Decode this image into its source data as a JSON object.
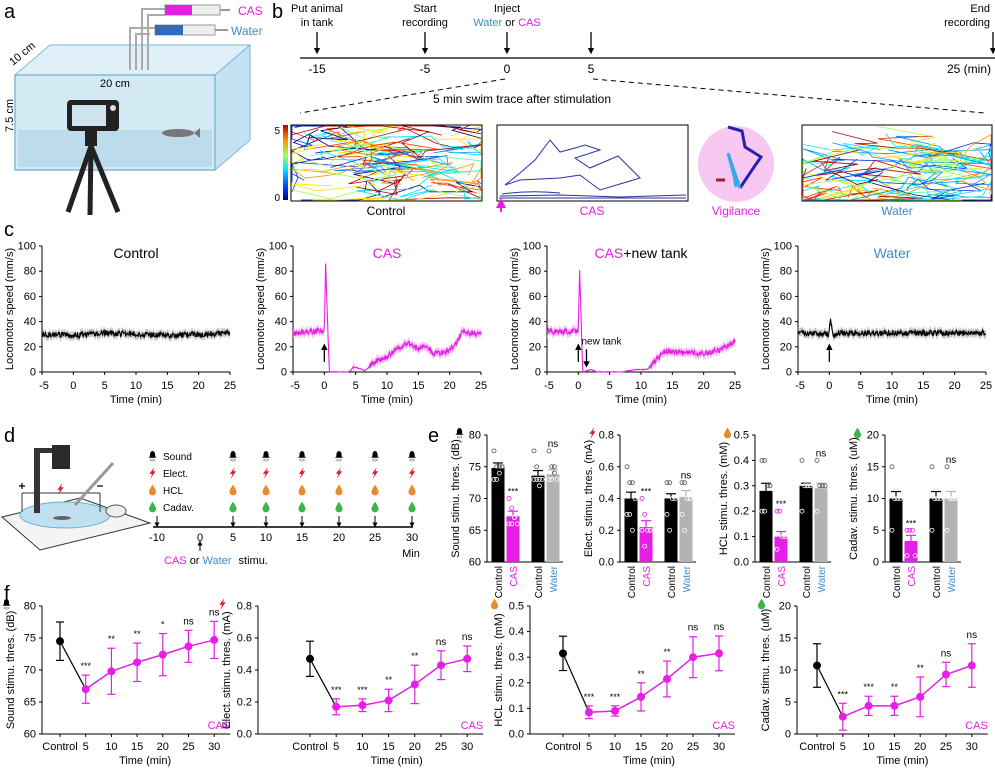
{
  "colors": {
    "cas": "#e61ee6",
    "water": "#3b8ec9",
    "control": "#000000",
    "water_bar": "#b3b3b3",
    "elect": "#d8202a",
    "hcl": "#e88a2e",
    "cadav": "#3cb54a",
    "vigilance_bg": "#f7c9f2"
  },
  "panel_labels": {
    "a": "a",
    "b": "b",
    "c": "c",
    "d": "d",
    "e": "e",
    "f": "f"
  },
  "panel_a": {
    "syringe_cas": "CAS",
    "syringe_water": "Water",
    "depth": "10 cm",
    "width": "20 cm",
    "height": "7.5 cm"
  },
  "panel_b": {
    "events": [
      {
        "t": -15,
        "label1": "Put animal",
        "label2": "in tank",
        "tick": "-15"
      },
      {
        "t": -5,
        "label1": "Start",
        "label2": "recording",
        "tick": "-5"
      },
      {
        "t": 0,
        "label1": "Inject",
        "label2_a": "Water",
        "label2_b": "or",
        "label2_c": "CAS",
        "tick": "0"
      },
      {
        "t": 5,
        "tick": "5"
      },
      {
        "t": 25,
        "label1": "End",
        "label2": "recording",
        "tick": "25 (min)"
      }
    ],
    "trace_caption": "5 min swim trace after stimulation",
    "colorbar_max": "5",
    "colorbar_min": "0",
    "trace_labels": {
      "control": "Control",
      "cas": "CAS",
      "vigilance": "Vigilance",
      "water": "Water"
    }
  },
  "panel_d": {
    "rows": [
      "Sound",
      "Elect.",
      "HCL",
      "Cadav."
    ],
    "tick_labels": [
      "-10",
      "0",
      "5",
      "10",
      "15",
      "20",
      "25",
      "30"
    ],
    "unit": "Min",
    "caption": {
      "cas": "CAS",
      "or": "or",
      "water": "Water",
      "stimu": "stimu."
    }
  },
  "chart_data": [
    {
      "type": "line",
      "panel": "c",
      "title_parts": [
        {
          "text": "Control",
          "color": "#000000"
        }
      ],
      "xlabel": "Time (min)",
      "ylabel": "Locomotor speed (mm/s)",
      "xlim": [
        -5,
        25
      ],
      "ylim": [
        0,
        100
      ],
      "xticks": [
        "-5",
        "0",
        "5",
        "10",
        "15",
        "20",
        "25"
      ],
      "yticks": [
        "0",
        "20",
        "40",
        "60",
        "80",
        "100"
      ],
      "series": [
        {
          "color": "#000000",
          "band_color": "#b0b0b0",
          "x": [
            -5,
            0,
            5,
            10,
            15,
            20,
            25
          ],
          "y": [
            30,
            29,
            31,
            30,
            29,
            30,
            31
          ]
        }
      ]
    },
    {
      "type": "line",
      "panel": "c",
      "title_parts": [
        {
          "text": "CAS",
          "color": "#e61ee6"
        }
      ],
      "xlabel": "Time (min)",
      "ylabel": "Locomotor speed (mm/s)",
      "xlim": [
        -5,
        25
      ],
      "ylim": [
        0,
        100
      ],
      "xticks": [
        "-5",
        "0",
        "5",
        "10",
        "15",
        "20",
        "25"
      ],
      "yticks": [
        "0",
        "20",
        "40",
        "60",
        "80",
        "100"
      ],
      "stimulus_t": 0,
      "series": [
        {
          "color": "#e61ee6",
          "band_color": "#f5a8f5",
          "x": [
            -5,
            0,
            0.2,
            0.8,
            4,
            4.6,
            5.5,
            6.5,
            8,
            10,
            12,
            13.5,
            15,
            16,
            17.5,
            19.5,
            21,
            22,
            25
          ],
          "y": [
            31,
            33,
            85,
            0,
            0,
            4,
            3,
            1,
            8,
            12,
            20,
            23,
            18,
            22,
            14,
            16,
            22,
            32,
            30
          ]
        }
      ]
    },
    {
      "type": "line",
      "panel": "c",
      "title_parts": [
        {
          "text": "CAS",
          "color": "#e61ee6"
        },
        {
          "text": "+new tank",
          "color": "#000000"
        }
      ],
      "xlabel": "Time (min)",
      "ylabel": "Locomotor speed (mm/s)",
      "xlim": [
        -5,
        25
      ],
      "ylim": [
        0,
        100
      ],
      "xticks": [
        "-5",
        "0",
        "5",
        "10",
        "15",
        "20",
        "25"
      ],
      "yticks": [
        "0",
        "20",
        "40",
        "60",
        "80",
        "100"
      ],
      "stimulus_t": 0,
      "annotation": {
        "text": "new tank",
        "t": 1.3
      },
      "series": [
        {
          "color": "#e61ee6",
          "band_color": "#f5a8f5",
          "x": [
            -5,
            0,
            0.2,
            0.7,
            2,
            3,
            7,
            9,
            11,
            12.5,
            14,
            17,
            20,
            23,
            25
          ],
          "y": [
            32,
            32,
            83,
            0,
            2,
            0,
            0,
            2,
            2,
            10,
            17,
            15,
            15,
            18,
            25
          ]
        }
      ]
    },
    {
      "type": "line",
      "panel": "c",
      "title_parts": [
        {
          "text": "Water",
          "color": "#3b8ec9"
        }
      ],
      "xlabel": "Time (min)",
      "ylabel": "Locomotor speed (mm/s)",
      "xlim": [
        -5,
        25
      ],
      "ylim": [
        0,
        100
      ],
      "xticks": [
        "-5",
        "0",
        "5",
        "10",
        "15",
        "20",
        "25"
      ],
      "yticks": [
        "0",
        "20",
        "40",
        "60",
        "80",
        "100"
      ],
      "stimulus_t": 0,
      "series": [
        {
          "color": "#000000",
          "band_color": "#b0b0b0",
          "x": [
            -5,
            -0.1,
            0.2,
            0.6,
            1.5,
            25
          ],
          "y": [
            31,
            30,
            42,
            28,
            31,
            31
          ]
        }
      ]
    },
    {
      "type": "bar",
      "panel": "e",
      "icon": "sound",
      "ylabel": "Sound stimu. thres. (dB)",
      "ylim": [
        60,
        80
      ],
      "yticks": [
        "60",
        "65",
        "70",
        "75",
        "80"
      ],
      "categories": [
        "Control",
        "CAS",
        "Control",
        "Water"
      ],
      "bar_colors": [
        "#000000",
        "#e61ee6",
        "#000000",
        "#b3b3b3"
      ],
      "label_colors": [
        "#000000",
        "#e61ee6",
        "#000000",
        "#3b8ec9"
      ],
      "values": [
        74.8,
        67.2,
        73.6,
        73.8
      ],
      "errors": [
        0.8,
        0.8,
        0.8,
        0.7
      ],
      "significance": [
        "",
        "***",
        "",
        "ns"
      ],
      "points": [
        [
          77.5,
          75,
          75,
          75,
          73,
          73,
          74,
          75
        ],
        [
          70,
          68.5,
          67,
          66,
          66,
          66,
          67
        ],
        [
          77.5,
          75,
          73,
          73,
          73,
          73,
          72
        ],
        [
          77.5,
          75,
          74,
          73,
          73,
          73,
          75
        ]
      ]
    },
    {
      "type": "bar",
      "panel": "e",
      "icon": "elect",
      "ylabel": "Elect. stimu. thres. (mA)",
      "ylim": [
        0,
        0.8
      ],
      "yticks": [
        "0.0",
        "0.2",
        "0.4",
        "0.6",
        "0.8"
      ],
      "categories": [
        "Control",
        "CAS",
        "Control",
        "Water"
      ],
      "bar_colors": [
        "#000000",
        "#e61ee6",
        "#000000",
        "#b3b3b3"
      ],
      "label_colors": [
        "#000000",
        "#e61ee6",
        "#000000",
        "#3b8ec9"
      ],
      "values": [
        0.4,
        0.22,
        0.4,
        0.41
      ],
      "errors": [
        0.04,
        0.04,
        0.03,
        0.04
      ],
      "significance": [
        "",
        "***",
        "",
        "ns"
      ],
      "points": [
        [
          0.6,
          0.5,
          0.5,
          0.4,
          0.3,
          0.3,
          0.2
        ],
        [
          0.4,
          0.3,
          0.2,
          0.2,
          0.2,
          0.1
        ],
        [
          0.5,
          0.5,
          0.4,
          0.4,
          0.3,
          0.2
        ],
        [
          0.5,
          0.5,
          0.4,
          0.4,
          0.3,
          0.2
        ]
      ]
    },
    {
      "type": "bar",
      "panel": "e",
      "icon": "hcl",
      "ylabel": "HCL stimu. thres. (mM)",
      "ylim": [
        0,
        0.5
      ],
      "yticks": [
        "0.0",
        "0.1",
        "0.2",
        "0.3",
        "0.4",
        "0.5"
      ],
      "categories": [
        "Control",
        "CAS",
        "Control",
        "Water"
      ],
      "bar_colors": [
        "#000000",
        "#e61ee6",
        "#000000",
        "#b3b3b3"
      ],
      "label_colors": [
        "#000000",
        "#e61ee6",
        "#000000",
        "#3b8ec9"
      ],
      "values": [
        0.28,
        0.1,
        0.3,
        0.29
      ],
      "errors": [
        0.03,
        0.02,
        0.01,
        0.02
      ],
      "significance": [
        "",
        "***",
        "",
        "ns"
      ],
      "points": [
        [
          0.4,
          0.4,
          0.3,
          0.3,
          0.2,
          0.2
        ],
        [
          0.2,
          0.2,
          0.1,
          0.1,
          0.05
        ],
        [
          0.4,
          0.3,
          0.3,
          0.3,
          0.2
        ],
        [
          0.4,
          0.3,
          0.3,
          0.3,
          0.2
        ]
      ]
    },
    {
      "type": "bar",
      "panel": "e",
      "icon": "cadav",
      "ylabel": "Cadav. stimu. thres. (uM)",
      "ylim": [
        0,
        20
      ],
      "yticks": [
        "0",
        "5",
        "10",
        "15",
        "20"
      ],
      "categories": [
        "Control",
        "CAS",
        "Control",
        "Water"
      ],
      "bar_colors": [
        "#000000",
        "#e61ee6",
        "#000000",
        "#b3b3b3"
      ],
      "label_colors": [
        "#000000",
        "#e61ee6",
        "#000000",
        "#3b8ec9"
      ],
      "values": [
        10,
        3.3,
        10,
        10
      ],
      "errors": [
        1.1,
        0.9,
        1.1,
        1.1
      ],
      "significance": [
        "",
        "***",
        "",
        "ns"
      ],
      "points": [
        [
          15,
          10,
          10,
          10,
          5
        ],
        [
          5,
          5,
          5,
          1,
          1
        ],
        [
          15,
          10,
          10,
          10,
          5
        ],
        [
          15,
          10,
          10,
          10,
          5
        ]
      ]
    },
    {
      "type": "line",
      "panel": "f",
      "icon": "sound",
      "ylabel": "Sound stimu. thres. (dB)",
      "xlabel": "Time (min)",
      "legend": "CAS",
      "ylim": [
        60,
        80
      ],
      "yticks": [
        "60",
        "65",
        "70",
        "75",
        "80"
      ],
      "categories": [
        "Control",
        "5",
        "10",
        "15",
        "20",
        "25",
        "30"
      ],
      "values": [
        74.5,
        67.0,
        69.8,
        71.2,
        72.4,
        73.7,
        74.7
      ],
      "errors": [
        3.0,
        2.2,
        3.6,
        3.0,
        3.3,
        2.5,
        2.9
      ],
      "significance": [
        "",
        "***",
        "**",
        "**",
        "*",
        "ns",
        "ns"
      ]
    },
    {
      "type": "line",
      "panel": "f",
      "icon": "elect",
      "ylabel": "Elect. stimu. thres. (mA)",
      "xlabel": "Time (min)",
      "legend": "CAS",
      "ylim": [
        0,
        0.8
      ],
      "yticks": [
        "0.0",
        "0.2",
        "0.4",
        "0.6",
        "0.8"
      ],
      "categories": [
        "Control",
        "5",
        "10",
        "15",
        "20",
        "25",
        "30"
      ],
      "values": [
        0.47,
        0.17,
        0.18,
        0.21,
        0.31,
        0.43,
        0.47
      ],
      "errors": [
        0.11,
        0.05,
        0.04,
        0.07,
        0.12,
        0.09,
        0.08
      ],
      "significance": [
        "",
        "***",
        "***",
        "**",
        "**",
        "ns",
        "ns"
      ]
    },
    {
      "type": "line",
      "panel": "f",
      "icon": "hcl",
      "ylabel": "HCL stimu. thres. (mM)",
      "xlabel": "Time (min)",
      "legend": "CAS",
      "ylim": [
        0,
        0.5
      ],
      "yticks": [
        "0.0",
        "0.1",
        "0.2",
        "0.3",
        "0.4",
        "0.5"
      ],
      "categories": [
        "Control",
        "5",
        "10",
        "15",
        "20",
        "25",
        "30"
      ],
      "values": [
        0.315,
        0.085,
        0.09,
        0.145,
        0.215,
        0.3,
        0.315
      ],
      "errors": [
        0.067,
        0.025,
        0.02,
        0.055,
        0.07,
        0.08,
        0.068
      ],
      "significance": [
        "",
        "***",
        "***",
        "**",
        "**",
        "ns",
        "ns"
      ]
    },
    {
      "type": "line",
      "panel": "f",
      "icon": "cadav",
      "ylabel": "Cadav. stimu. thres. (uM)",
      "xlabel": "Time (min)",
      "legend": "CAS",
      "ylim": [
        0,
        20
      ],
      "yticks": [
        "0",
        "5",
        "10",
        "15",
        "20"
      ],
      "categories": [
        "Control",
        "5",
        "10",
        "15",
        "20",
        "25",
        "30"
      ],
      "values": [
        10.7,
        2.7,
        4.4,
        4.4,
        5.8,
        9.3,
        10.7
      ],
      "errors": [
        3.4,
        2.1,
        1.5,
        1.5,
        3.1,
        1.9,
        3.4
      ],
      "significance": [
        "",
        "***",
        "***",
        "**",
        "**",
        "ns",
        "ns"
      ]
    }
  ]
}
